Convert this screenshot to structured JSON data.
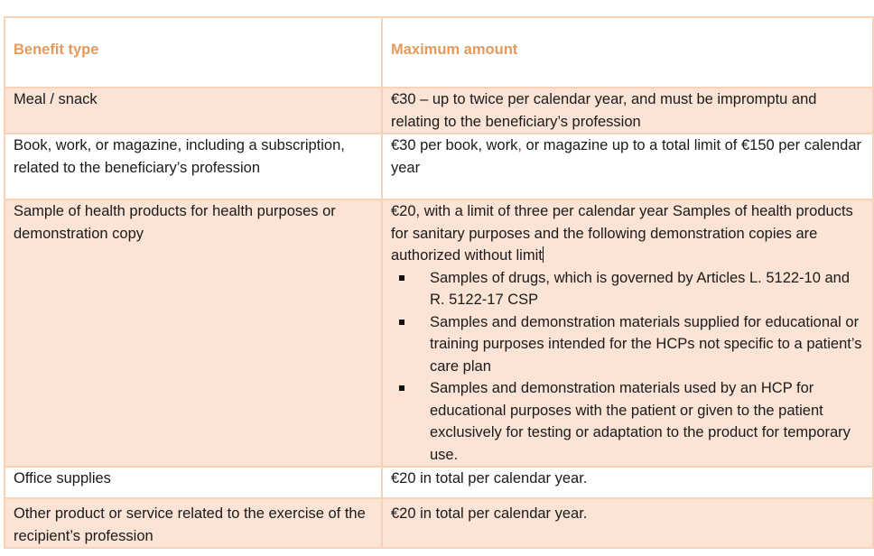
{
  "header": {
    "col1": "Benefit type",
    "col2": "Maximum amount"
  },
  "rows": [
    {
      "type": "Meal / snack",
      "amount": "€30 – up to twice per calendar year, and must be impromptu and relating to the beneficiary’s profession"
    },
    {
      "type": "Book, work, or magazine, including a subscription, related to the beneficiary’s profession",
      "amount_part1": "€30 per book, work",
      "amount_comma": ",",
      "amount_part2": " or magazine up to a total limit of €150 per calendar year"
    },
    {
      "type": "Sample of health products for health purposes or demonstration copy",
      "amount_intro": "€20, with a limit of three per calendar year Samples of health products for sanitary purposes and the following demonstration copies are authorized without limit",
      "amount_bullets": [
        "Samples of drugs, which is governed by Articles L. 5122-10 and R. 5122-17 CSP",
        "Samples and demonstration materials supplied for educational or training purposes intended for the HCPs not specific to a patient’s care plan",
        "Samples and demonstration materials used by an HCP for educational purposes with the patient or given to the patient exclusively for testing or adaptation to the product for temporary use."
      ]
    },
    {
      "type": "Office supplies",
      "amount": "€20 in total per calendar year."
    },
    {
      "type": "Other product or service related to the exercise of the recipient’s profession",
      "amount": "€20 in total per calendar year."
    }
  ],
  "colors": {
    "header_text": "#e59a5c",
    "border": "#f6d2b6",
    "shade": "#fbe4d5"
  }
}
